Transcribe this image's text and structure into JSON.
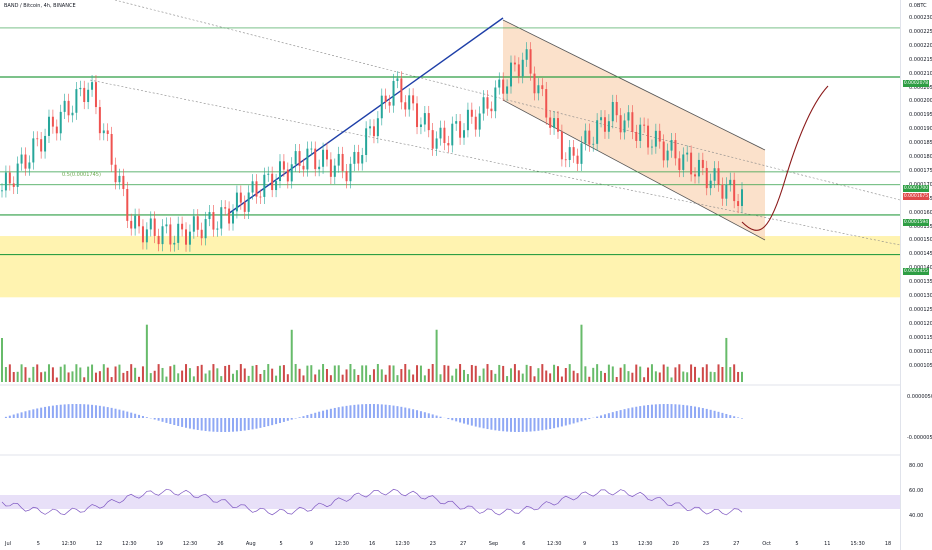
{
  "header": {
    "symbol": "BAND / Bitcoin, 4h, BINANCE"
  },
  "price_axis": {
    "top_label": "0.0BTC",
    "ticks": [
      "0.0002300",
      "0.0002250",
      "0.0002200",
      "0.0002150",
      "0.0002100",
      "0.0002050",
      "0.0002000",
      "0.0001950",
      "0.0001900",
      "0.0001850",
      "0.0001800",
      "0.0001750",
      "0.0001700",
      "0.0001650",
      "0.0001600",
      "0.0001550",
      "0.0001500",
      "0.0001450",
      "0.0001400",
      "0.0001350",
      "0.0001300",
      "0.0001250",
      "0.0001200",
      "0.0001150",
      "0.0001100",
      "0.0001050"
    ],
    "macd_ticks": [
      "0.0000050",
      "-0.0000050"
    ],
    "rsi_ticks": [
      "80.00",
      "60.00",
      "40.00"
    ],
    "badges": [
      {
        "text": "0.0002078",
        "color": "#2e9e44"
      },
      {
        "text": "0.0001700",
        "color": "#2e9e44"
      },
      {
        "text": "0.0001675",
        "color": "#e04a4a"
      },
      {
        "text": "0.0001594",
        "color": "#2e9e44"
      },
      {
        "text": "0.0001455",
        "color": "#2e9e44"
      }
    ]
  },
  "fib_label": "0.5(0.0001745)",
  "time_axis": [
    "Jul",
    "5",
    "12:30",
    "12",
    "12:30",
    "19",
    "12:30",
    "26",
    "Aug",
    "5",
    "9",
    "12:30",
    "16",
    "12:30",
    "23",
    "27",
    "Sep",
    "6",
    "12:30",
    "9",
    "13",
    "12:30",
    "20",
    "23",
    "27",
    "Oct",
    "5",
    "11",
    "15:30",
    "18"
  ],
  "colors": {
    "up": "#26a69a",
    "down": "#ef5350",
    "green_line": "#2e9e44",
    "channel_fill": "#f7c8a0",
    "yellow_zone": "#fff3b0",
    "macd": "#8fa8f5",
    "rsi": "#7e57c2",
    "trend_blue": "#1e3fa8"
  },
  "chart_data": {
    "type": "line",
    "title": "BAND / Bitcoin, 4h, BINANCE",
    "x": [
      "Jul",
      "5",
      "12",
      "19",
      "26",
      "Aug",
      "5",
      "9",
      "16",
      "23",
      "27",
      "Sep",
      "6",
      "9",
      "13",
      "20",
      "23",
      "27"
    ],
    "series": [
      {
        "values": [
          0.000168,
          0.000188,
          0.000205,
          0.000155,
          0.000152,
          0.000158,
          0.00017,
          0.00018,
          0.000175,
          0.000205,
          0.000185,
          0.000195,
          0.000215,
          0.000178,
          0.000195,
          0.000185,
          0.000175,
          0.000165
        ]
      }
    ],
    "ylim": [
      0.00013,
      0.000232
    ],
    "levels": [
      0.000225,
      0.0002078,
      0.0001745,
      0.00017,
      0.0001594,
      0.0001455
    ],
    "grid": false
  }
}
